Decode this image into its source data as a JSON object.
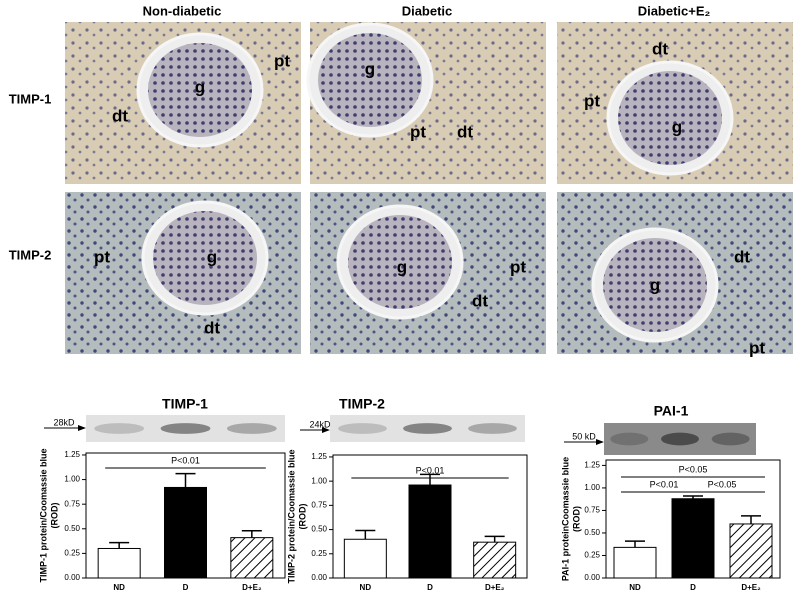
{
  "column_headers": [
    "Non-diabetic",
    "Diabetic",
    "Diabetic+E₂"
  ],
  "row_labels": [
    "TIMP-1",
    "TIMP-2"
  ],
  "micrographs": [
    {
      "labels": [
        "pt",
        "g",
        "dt"
      ]
    },
    {
      "labels": [
        "g",
        "pt",
        "dt"
      ]
    },
    {
      "labels": [
        "dt",
        "pt",
        "g"
      ]
    },
    {
      "labels": [
        "pt",
        "g",
        "dt"
      ]
    },
    {
      "labels": [
        "g",
        "pt",
        "dt"
      ]
    },
    {
      "labels": [
        "dt",
        "g",
        "pt"
      ]
    }
  ],
  "chart_data": [
    {
      "type": "bar",
      "title": "TIMP-1",
      "blot_label": "28kD",
      "ylabel": [
        "TIMP-1 protein/Coomassie blue",
        "(ROD)"
      ],
      "categories": [
        "ND",
        "D",
        "D+E₂"
      ],
      "values": [
        0.3,
        0.92,
        0.41
      ],
      "errors": [
        0.06,
        0.14,
        0.07
      ],
      "colors": [
        "#ffffff",
        "#000000",
        "#ffffff"
      ],
      "hatch": [
        false,
        false,
        true
      ],
      "ylim": [
        0,
        1.27
      ],
      "yticks": [
        {
          "value": 0,
          "label": "0.00"
        },
        {
          "value": 0.25,
          "label": "0.25"
        },
        {
          "value": 0.5,
          "label": "0.50"
        },
        {
          "value": 0.75,
          "label": "0.75"
        },
        {
          "value": 1,
          "label": "1.00"
        },
        {
          "value": 1.25,
          "label": "1.25"
        }
      ],
      "annotations": [
        "P<0.01"
      ]
    },
    {
      "type": "bar",
      "title": "TIMP-2",
      "blot_label": "24kD",
      "ylabel": [
        "TIMP-2 protein/Coomassie blue",
        "(ROD)"
      ],
      "categories": [
        "ND",
        "D",
        "D+E₂"
      ],
      "values": [
        0.4,
        0.96,
        0.37
      ],
      "errors": [
        0.09,
        0.11,
        0.06
      ],
      "colors": [
        "#ffffff",
        "#000000",
        "#ffffff"
      ],
      "hatch": [
        false,
        false,
        true
      ],
      "ylim": [
        0,
        1.27
      ],
      "yticks": [
        {
          "value": 0,
          "label": "0.00"
        },
        {
          "value": 0.25,
          "label": "0.25"
        },
        {
          "value": 0.5,
          "label": "0.50"
        },
        {
          "value": 0.75,
          "label": "0.75"
        },
        {
          "value": 1,
          "label": "1.00"
        },
        {
          "value": 1.25,
          "label": "1.25"
        }
      ],
      "annotations": [
        "P<0.01"
      ]
    },
    {
      "type": "bar",
      "title": "PAI-1",
      "blot_label": "50 kD",
      "ylabel": [
        "PAI-1 proteinCoomassie blue",
        "(ROD)"
      ],
      "categories": [
        "ND",
        "D",
        "D+E₂"
      ],
      "values": [
        0.34,
        0.88,
        0.6
      ],
      "errors": [
        0.07,
        0.03,
        0.09
      ],
      "colors": [
        "#ffffff",
        "#000000",
        "#ffffff"
      ],
      "hatch": [
        false,
        false,
        true
      ],
      "ylim": [
        0,
        1.31
      ],
      "yticks": [
        {
          "value": 0,
          "label": "0.00"
        },
        {
          "value": 0.25,
          "label": "0.25"
        },
        {
          "value": 0.5,
          "label": "0.50"
        },
        {
          "value": 0.75,
          "label": "0.75"
        },
        {
          "value": 1,
          "label": "1.00"
        },
        {
          "value": 1.25,
          "label": "1.25"
        }
      ],
      "annotations": [
        "P<0.05",
        "P<0.01",
        "P<0.05"
      ]
    }
  ]
}
